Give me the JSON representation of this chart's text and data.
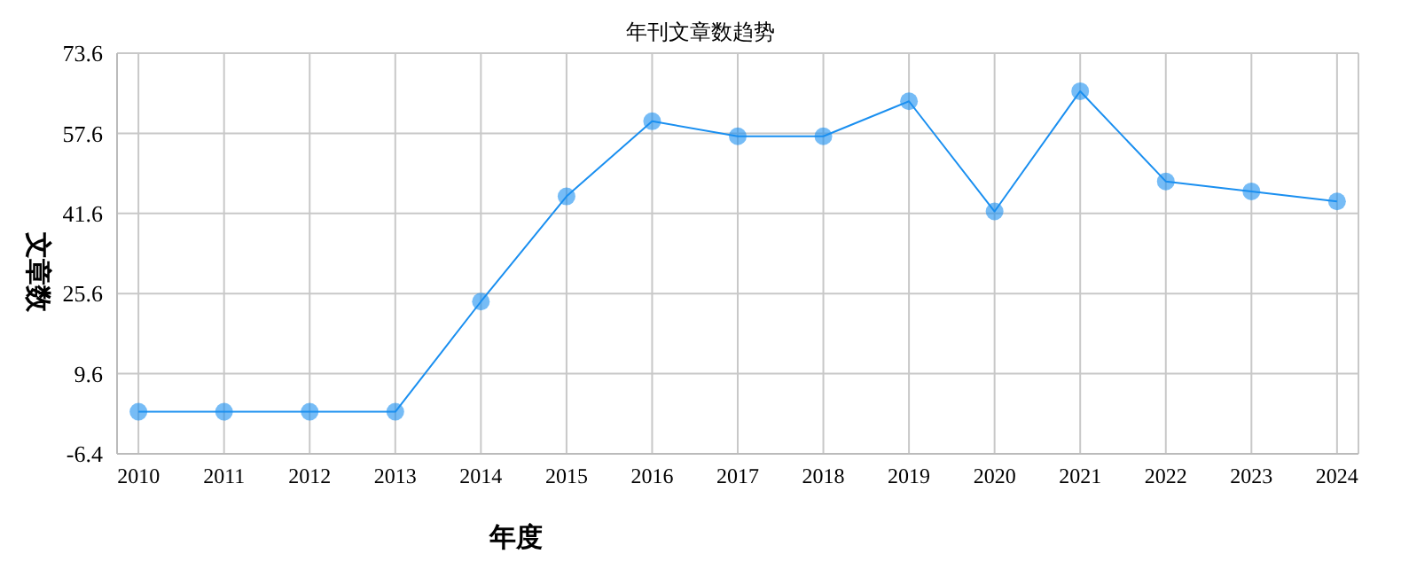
{
  "chart_data": {
    "type": "line",
    "title": "年刊文章数趋势",
    "xlabel": "年度",
    "ylabel": "文章数",
    "categories": [
      "2010",
      "2011",
      "2012",
      "2013",
      "2014",
      "2015",
      "2016",
      "2017",
      "2018",
      "2019",
      "2020",
      "2021",
      "2022",
      "2023",
      "2024"
    ],
    "series": [
      {
        "color": "#1a8ff0",
        "values": [
          2,
          2,
          2,
          2,
          24,
          45,
          60,
          57,
          57,
          64,
          42,
          66,
          48,
          46,
          44
        ]
      }
    ],
    "ylim": [
      -6.4,
      73.6
    ],
    "yticks": [
      -6.4,
      9.6,
      25.6,
      41.6,
      57.6,
      73.6
    ],
    "grid": true,
    "legend": false,
    "marker": "circle",
    "line_style": "solid"
  }
}
